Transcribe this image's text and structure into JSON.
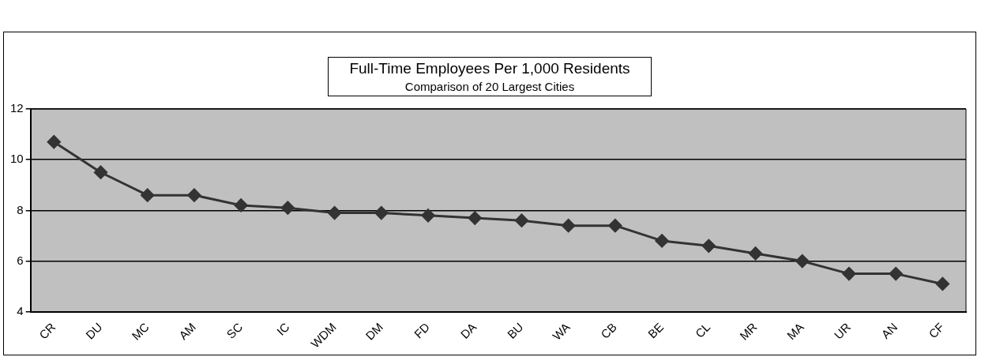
{
  "chart_data": {
    "type": "line",
    "title": "Full-Time Employees Per 1,000 Residents",
    "subtitle": "Comparison of 20 Largest Cities",
    "categories": [
      "CR",
      "DU",
      "MC",
      "AM",
      "SC",
      "IC",
      "WDM",
      "DM",
      "FD",
      "DA",
      "BU",
      "WA",
      "CB",
      "BE",
      "CL",
      "MR",
      "MA",
      "UR",
      "AN",
      "CF"
    ],
    "series": [
      {
        "color": "#333333",
        "values": [
          10.7,
          9.5,
          8.6,
          8.6,
          8.2,
          8.1,
          7.9,
          7.9,
          7.8,
          7.7,
          7.6,
          7.4,
          7.4,
          6.8,
          6.6,
          6.3,
          6.0,
          5.5,
          5.5,
          5.1
        ]
      }
    ],
    "ylim": [
      4,
      12
    ],
    "yticks": [
      4,
      6,
      8,
      10,
      12
    ],
    "grid": "y",
    "legend": false,
    "marker": "diamond",
    "line_style": "solid"
  }
}
